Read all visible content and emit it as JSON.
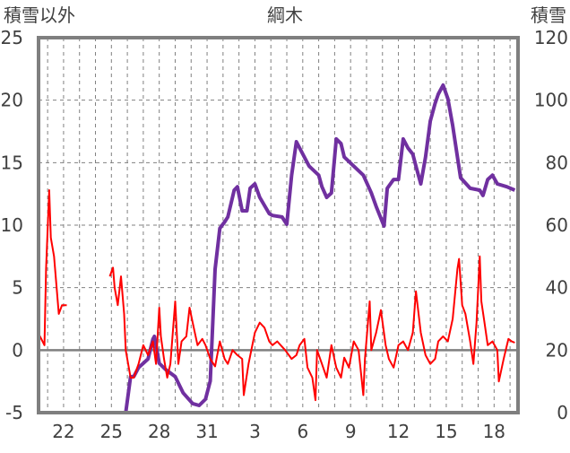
{
  "chart_data": {
    "type": "line",
    "title": "綱木",
    "ylabel_left": "積雪以外",
    "ylabel_right": "積雪",
    "ylim_left": [
      -5,
      25
    ],
    "yticks_left": [
      "-5",
      "0",
      "5",
      "10",
      "15",
      "20",
      "25"
    ],
    "ylim_right": [
      0,
      120
    ],
    "yticks_right": [
      "0",
      "20",
      "40",
      "60",
      "80",
      "100",
      "120"
    ],
    "xlim": [
      20.43,
      50.5
    ],
    "xticks": [
      {
        "pos": 22,
        "label": "22"
      },
      {
        "pos": 25,
        "label": "25"
      },
      {
        "pos": 28,
        "label": "28"
      },
      {
        "pos": 31,
        "label": "31"
      },
      {
        "pos": 34,
        "label": "3"
      },
      {
        "pos": 37,
        "label": "6"
      },
      {
        "pos": 40,
        "label": "9"
      },
      {
        "pos": 43,
        "label": "12"
      },
      {
        "pos": 46,
        "label": "15"
      },
      {
        "pos": 49,
        "label": "18"
      }
    ],
    "grid": true,
    "series": [
      {
        "name": "積雪",
        "axis": "right",
        "color": "#7030a0",
        "points": [
          [
            20.4,
            0
          ],
          [
            22.2,
            0
          ],
          null,
          [
            24.9,
            0
          ],
          [
            25.9,
            0
          ],
          [
            26.2,
            11.5
          ],
          [
            26.4,
            11.5
          ],
          [
            26.7,
            14.4
          ],
          [
            27.0,
            15.8
          ],
          [
            27.3,
            17.2
          ],
          [
            27.6,
            23.5
          ],
          [
            27.7,
            24.4
          ],
          [
            28.0,
            15.8
          ],
          [
            28.4,
            13.8
          ],
          [
            29.0,
            11.5
          ],
          [
            29.5,
            6.3
          ],
          [
            30.1,
            2.9
          ],
          [
            30.5,
            2.3
          ],
          [
            30.9,
            4.3
          ],
          [
            31.2,
            10.1
          ],
          [
            31.5,
            45.9
          ],
          [
            31.8,
            59
          ],
          [
            32.1,
            61
          ],
          [
            32.3,
            62.6
          ],
          [
            32.7,
            71.2
          ],
          [
            32.9,
            72.3
          ],
          [
            33.2,
            64.6
          ],
          [
            33.5,
            64.6
          ],
          [
            33.7,
            71.8
          ],
          [
            34.0,
            73.2
          ],
          [
            34.3,
            68.9
          ],
          [
            34.9,
            63.7
          ],
          [
            35.1,
            63.1
          ],
          [
            35.7,
            62.6
          ],
          [
            36.0,
            60.3
          ],
          [
            36.3,
            76
          ],
          [
            36.6,
            86.7
          ],
          [
            36.8,
            84.7
          ],
          [
            37.4,
            78.9
          ],
          [
            38.0,
            76
          ],
          [
            38.2,
            72.3
          ],
          [
            38.5,
            68.9
          ],
          [
            38.8,
            70.3
          ],
          [
            39.1,
            87.6
          ],
          [
            39.4,
            86.1
          ],
          [
            39.6,
            81.8
          ],
          [
            40.2,
            78.9
          ],
          [
            40.8,
            76
          ],
          [
            41.3,
            70.3
          ],
          [
            41.6,
            66
          ],
          [
            42.1,
            59.7
          ],
          [
            42.3,
            71.8
          ],
          [
            42.7,
            74.6
          ],
          [
            43.0,
            74.6
          ],
          [
            43.3,
            87.6
          ],
          [
            43.6,
            84.7
          ],
          [
            43.9,
            82.7
          ],
          [
            44.1,
            78.9
          ],
          [
            44.4,
            73.2
          ],
          [
            44.7,
            81.8
          ],
          [
            45.0,
            93.3
          ],
          [
            45.3,
            99
          ],
          [
            45.5,
            101.9
          ],
          [
            45.8,
            104.8
          ],
          [
            46.1,
            100.5
          ],
          [
            46.4,
            91.9
          ],
          [
            46.7,
            81.8
          ],
          [
            46.9,
            75.2
          ],
          [
            47.5,
            71.8
          ],
          [
            48.1,
            71.2
          ],
          [
            48.3,
            69.5
          ],
          [
            48.6,
            74.6
          ],
          [
            48.9,
            76
          ],
          [
            49.2,
            73.2
          ],
          [
            49.8,
            72.3
          ],
          [
            50.3,
            71.2
          ]
        ]
      },
      {
        "name": "積雪以外",
        "axis": "left",
        "color": "#ff0000",
        "points": [
          [
            20.4,
            1.4
          ],
          [
            20.8,
            0.4
          ],
          [
            20.9,
            6.5
          ],
          [
            21.1,
            12.8
          ],
          [
            21.2,
            9
          ],
          [
            21.4,
            7.5
          ],
          [
            21.7,
            2.9
          ],
          [
            21.9,
            3.6
          ],
          [
            22.2,
            3.6
          ],
          null,
          [
            24.9,
            5.9
          ],
          [
            25.1,
            6.6
          ],
          [
            25.2,
            5
          ],
          [
            25.4,
            3.6
          ],
          [
            25.6,
            5.9
          ],
          [
            25.8,
            2.9
          ],
          [
            25.9,
            0
          ],
          [
            26.2,
            -2.2
          ],
          [
            26.4,
            -2.2
          ],
          [
            26.7,
            -1.1
          ],
          [
            27.0,
            0.4
          ],
          [
            27.3,
            -0.4
          ],
          [
            27.6,
            0.7
          ],
          [
            27.8,
            -1.1
          ],
          [
            28.0,
            3.4
          ],
          [
            28.1,
            1.1
          ],
          [
            28.3,
            -0.7
          ],
          [
            28.5,
            -2.2
          ],
          [
            28.7,
            -1.1
          ],
          [
            29.0,
            3.9
          ],
          [
            29.2,
            -1.1
          ],
          [
            29.4,
            0.7
          ],
          [
            29.7,
            1.1
          ],
          [
            29.9,
            3.4
          ],
          [
            30.1,
            2.2
          ],
          [
            30.4,
            0.4
          ],
          [
            30.7,
            0.9
          ],
          [
            30.9,
            0.4
          ],
          [
            31.2,
            -0.7
          ],
          [
            31.5,
            -1.3
          ],
          [
            31.8,
            0.7
          ],
          [
            32.1,
            -0.7
          ],
          [
            32.3,
            -1.1
          ],
          [
            32.6,
            0
          ],
          [
            32.9,
            -0.4
          ],
          [
            33.2,
            -0.7
          ],
          [
            33.3,
            -3.6
          ],
          [
            33.6,
            -1.1
          ],
          [
            34.0,
            1.4
          ],
          [
            34.3,
            2.2
          ],
          [
            34.6,
            1.8
          ],
          [
            34.9,
            0.7
          ],
          [
            35.1,
            0.4
          ],
          [
            35.4,
            0.7
          ],
          [
            35.9,
            0
          ],
          [
            36.3,
            -0.7
          ],
          [
            36.6,
            -0.4
          ],
          [
            36.8,
            0.4
          ],
          [
            37.1,
            0.9
          ],
          [
            37.3,
            -1.4
          ],
          [
            37.6,
            -2.2
          ],
          [
            37.8,
            -4
          ],
          [
            37.9,
            0
          ],
          [
            38.2,
            -1.1
          ],
          [
            38.5,
            -2.2
          ],
          [
            38.8,
            0.4
          ],
          [
            39.1,
            -1.4
          ],
          [
            39.4,
            -2.2
          ],
          [
            39.6,
            -0.6
          ],
          [
            39.9,
            -1.4
          ],
          [
            40.2,
            0.7
          ],
          [
            40.5,
            0
          ],
          [
            40.8,
            -3.6
          ],
          [
            40.9,
            -0.7
          ],
          [
            41.2,
            3.9
          ],
          [
            41.3,
            0
          ],
          [
            41.6,
            1.4
          ],
          [
            41.9,
            3.2
          ],
          [
            42.2,
            0.4
          ],
          [
            42.4,
            -0.7
          ],
          [
            42.7,
            -1.4
          ],
          [
            43.0,
            0.4
          ],
          [
            43.3,
            0.7
          ],
          [
            43.6,
            0
          ],
          [
            43.9,
            1.4
          ],
          [
            44.1,
            4.7
          ],
          [
            44.4,
            1.4
          ],
          [
            44.7,
            -0.4
          ],
          [
            45.0,
            -1.1
          ],
          [
            45.3,
            -0.7
          ],
          [
            45.5,
            0.7
          ],
          [
            45.8,
            1.1
          ],
          [
            46.1,
            0.7
          ],
          [
            46.4,
            2.5
          ],
          [
            46.7,
            6.5
          ],
          [
            46.8,
            7.3
          ],
          [
            47.0,
            3.6
          ],
          [
            47.2,
            2.9
          ],
          [
            47.5,
            0.7
          ],
          [
            47.7,
            -1.1
          ],
          [
            47.9,
            2.2
          ],
          [
            48.1,
            7.5
          ],
          [
            48.2,
            3.9
          ],
          [
            48.4,
            2.2
          ],
          [
            48.6,
            0.4
          ],
          [
            48.9,
            0.7
          ],
          [
            49.2,
            0
          ],
          [
            49.3,
            -2.5
          ],
          [
            49.6,
            -0.7
          ],
          [
            49.9,
            0.9
          ],
          [
            50.1,
            0.7
          ],
          [
            50.3,
            0.6
          ]
        ]
      }
    ]
  }
}
